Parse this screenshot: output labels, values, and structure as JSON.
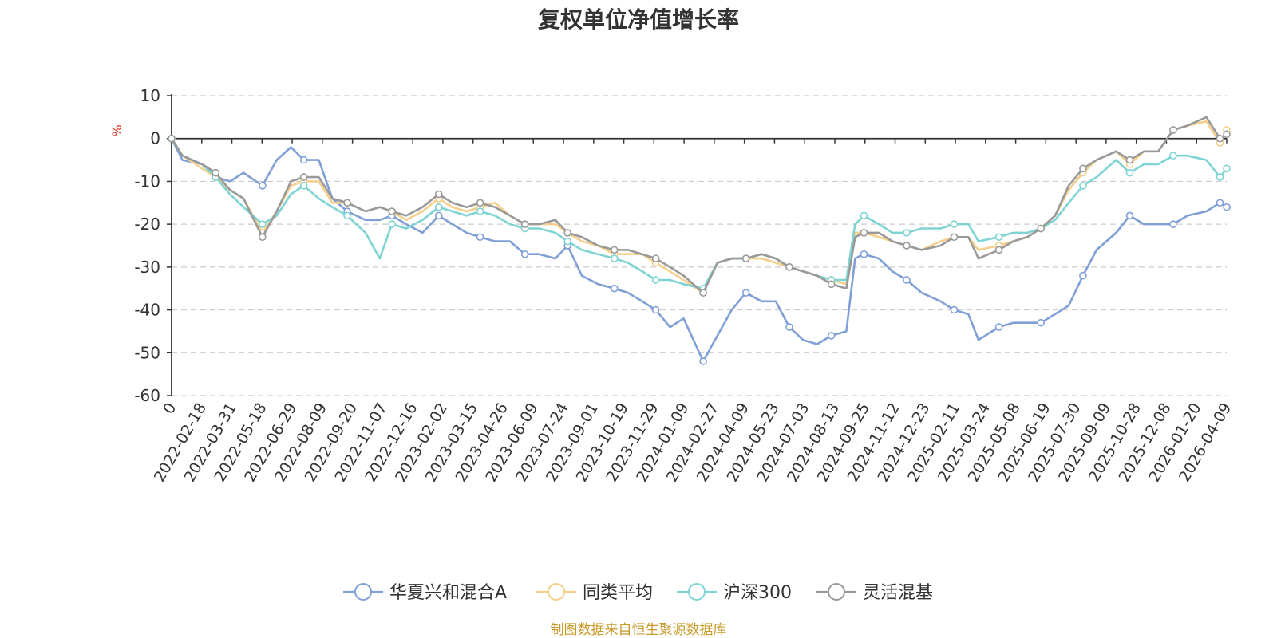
{
  "chart_data": {
    "type": "line",
    "title": "复权单位净值增长率",
    "ylabel": "%",
    "ylim": [
      -60,
      10
    ],
    "yticks": [
      10,
      0,
      -10,
      -20,
      -30,
      -40,
      -50,
      -60
    ],
    "grid": true,
    "legend_position": "bottom",
    "x_ticks": [
      "0",
      "2022-02-18",
      "2022-03-31",
      "2022-05-18",
      "2022-06-29",
      "2022-08-09",
      "2022-09-20",
      "2022-11-07",
      "2022-12-16",
      "2023-02-02",
      "2023-03-15",
      "2023-04-26",
      "2023-06-09",
      "2023-07-24",
      "2023-09-01",
      "2023-10-19",
      "2023-11-29",
      "2024-01-09",
      "2024-02-27",
      "2024-04-09",
      "2024-05-23",
      "2024-07-03",
      "2024-08-13",
      "2024-09-25",
      "2024-11-12",
      "2024-12-23",
      "2025-02-11",
      "2025-03-24",
      "2025-05-08",
      "2025-06-19",
      "2025-07-30",
      "2025-09-09",
      "2025-10-28",
      "2025-12-08",
      "2026-01-20",
      "2026-04-09"
    ],
    "x": [
      "2022-01-04",
      "2022-01-20",
      "2022-02-18",
      "2022-03-10",
      "2022-03-31",
      "2022-04-20",
      "2022-05-18",
      "2022-06-08",
      "2022-06-29",
      "2022-07-18",
      "2022-08-09",
      "2022-08-29",
      "2022-09-20",
      "2022-10-17",
      "2022-11-07",
      "2022-11-25",
      "2022-12-16",
      "2023-01-09",
      "2023-02-02",
      "2023-02-22",
      "2023-03-15",
      "2023-04-04",
      "2023-04-26",
      "2023-05-18",
      "2023-06-09",
      "2023-06-30",
      "2023-07-24",
      "2023-08-11",
      "2023-09-01",
      "2023-09-25",
      "2023-10-19",
      "2023-11-08",
      "2023-11-29",
      "2023-12-19",
      "2024-01-09",
      "2024-01-29",
      "2024-02-27",
      "2024-03-19",
      "2024-04-09",
      "2024-04-30",
      "2024-05-23",
      "2024-06-13",
      "2024-07-03",
      "2024-07-23",
      "2024-08-13",
      "2024-09-03",
      "2024-09-25",
      "2024-10-08",
      "2024-10-21",
      "2024-11-12",
      "2024-12-02",
      "2024-12-23",
      "2025-01-14",
      "2025-02-11",
      "2025-03-03",
      "2025-03-24",
      "2025-04-08",
      "2025-05-08",
      "2025-05-29",
      "2025-06-19",
      "2025-07-09",
      "2025-07-30",
      "2025-08-19",
      "2025-09-09",
      "2025-09-29",
      "2025-10-28",
      "2025-11-17",
      "2025-12-08",
      "2025-12-29",
      "2026-01-20",
      "2026-02-10",
      "2026-03-10",
      "2026-03-30",
      "2026-04-09"
    ],
    "series": [
      {
        "name": "华夏兴和混合A",
        "color": "#7f9fd6",
        "values": [
          0,
          -5,
          -6,
          -9,
          -10,
          -8,
          -11,
          -5,
          -2,
          -5,
          -5,
          -14,
          -17,
          -19,
          -19,
          -18,
          -20,
          -22,
          -18,
          -20,
          -22,
          -23,
          -24,
          -24,
          -27,
          -27,
          -28,
          -25,
          -32,
          -34,
          -35,
          -36,
          -38,
          -40,
          -44,
          -42,
          -52,
          -46,
          -40,
          -36,
          -38,
          -38,
          -44,
          -47,
          -48,
          -46,
          -45,
          -28,
          -27,
          -28,
          -31,
          -33,
          -36,
          -38,
          -40,
          -41,
          -47,
          -44,
          -43,
          -43,
          -43,
          -41,
          -39,
          -32,
          -26,
          -22,
          -18,
          -20,
          -20,
          -20,
          -18,
          -17,
          -15,
          -16
        ]
      },
      {
        "name": "同类平均",
        "color": "#f5d08c",
        "values": [
          0,
          -4,
          -7,
          -9,
          -12,
          -14,
          -22,
          -17,
          -11,
          -10,
          -10,
          -15,
          -15,
          -17,
          -16,
          -17,
          -19,
          -17,
          -14,
          -16,
          -17,
          -16,
          -15,
          -18,
          -20,
          -20,
          -20,
          -22,
          -24,
          -25,
          -27,
          -27,
          -27,
          -29,
          -31,
          -33,
          -36,
          -29,
          -28,
          -28,
          -28,
          -29,
          -30,
          -31,
          -32,
          -33,
          -34,
          -22,
          -22,
          -23,
          -24,
          -25,
          -26,
          -24,
          -23,
          -23,
          -26,
          -25,
          -24,
          -23,
          -21,
          -18,
          -12,
          -8,
          -5,
          -3,
          -6,
          -3,
          -3,
          2,
          3,
          4,
          -1,
          2
        ]
      },
      {
        "name": "沪深300",
        "color": "#7fd3d3",
        "values": [
          0,
          -4,
          -6,
          -9,
          -13,
          -16,
          -20,
          -18,
          -13,
          -11,
          -14,
          -16,
          -18,
          -22,
          -28,
          -20,
          -21,
          -19,
          -16,
          -17,
          -18,
          -17,
          -18,
          -20,
          -21,
          -21,
          -22,
          -24,
          -26,
          -27,
          -28,
          -29,
          -31,
          -33,
          -33,
          -34,
          -35,
          -29,
          -28,
          -28,
          -27,
          -28,
          -30,
          -31,
          -32,
          -33,
          -33,
          -20,
          -18,
          -20,
          -22,
          -22,
          -21,
          -21,
          -20,
          -20,
          -24,
          -23,
          -22,
          -22,
          -21,
          -19,
          -15,
          -11,
          -9,
          -5,
          -8,
          -6,
          -6,
          -4,
          -4,
          -5,
          -9,
          -7
        ]
      },
      {
        "name": "灵活混基",
        "color": "#999999",
        "values": [
          0,
          -4,
          -6,
          -8,
          -12,
          -14,
          -23,
          -17,
          -10,
          -9,
          -9,
          -14,
          -15,
          -17,
          -16,
          -17,
          -18,
          -16,
          -13,
          -15,
          -16,
          -15,
          -16,
          -18,
          -20,
          -20,
          -19,
          -22,
          -23,
          -25,
          -26,
          -26,
          -27,
          -28,
          -30,
          -32,
          -36,
          -29,
          -28,
          -28,
          -27,
          -28,
          -30,
          -31,
          -32,
          -34,
          -35,
          -23,
          -22,
          -22,
          -24,
          -25,
          -26,
          -25,
          -23,
          -23,
          -28,
          -26,
          -24,
          -23,
          -21,
          -18,
          -11,
          -7,
          -5,
          -3,
          -5,
          -3,
          -3,
          2,
          3,
          5,
          0,
          1
        ]
      }
    ]
  },
  "source_note": "制图数据来自恒生聚源数据库"
}
